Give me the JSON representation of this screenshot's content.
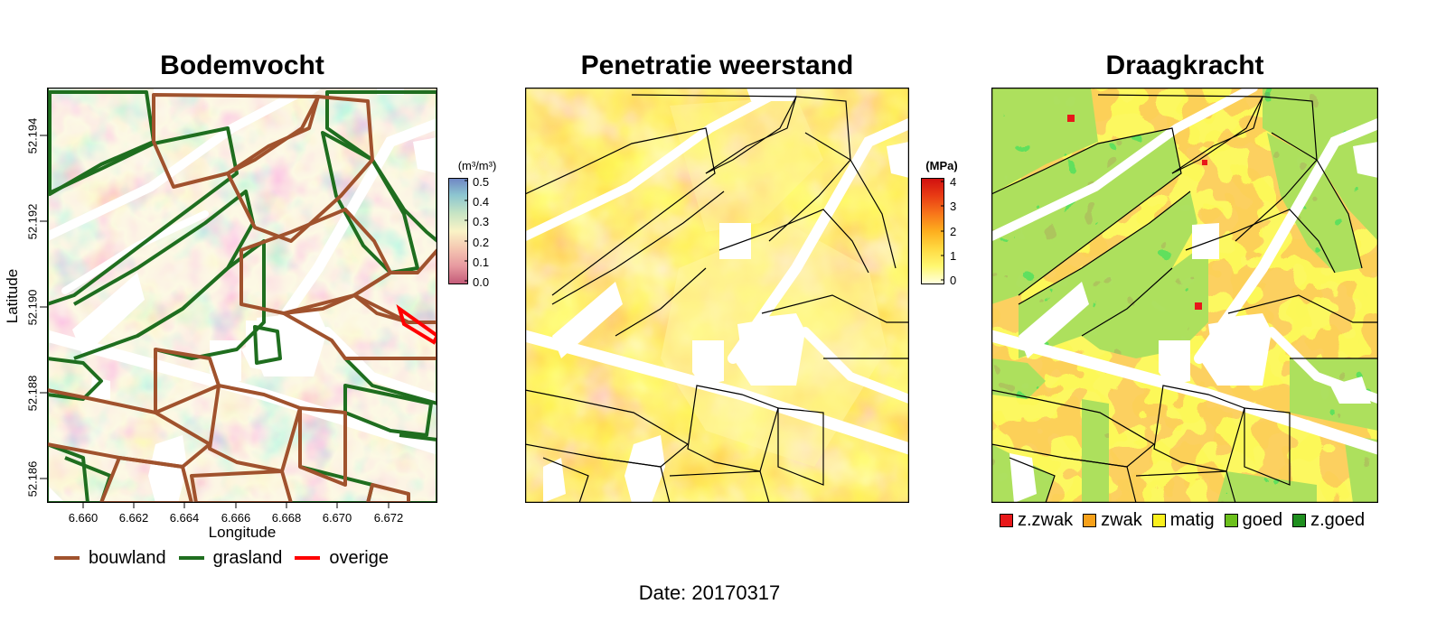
{
  "colors": {
    "bouwland": "#A0522D",
    "grasland": "#1F6E1F",
    "overige": "#FF0000",
    "parcel_edge": "#000000"
  },
  "footer": {
    "date_label": "Date: 20170317"
  },
  "chart_data": [
    {
      "type": "heatmap",
      "title": "Bodemvocht",
      "xlabel": "Longitude",
      "ylabel": "Latitude",
      "xlim": [
        6.6585,
        6.6737
      ],
      "ylim": [
        52.1852,
        52.1953
      ],
      "x_ticks": [
        "6.660",
        "6.662",
        "6.664",
        "6.666",
        "6.668",
        "6.670",
        "6.672"
      ],
      "y_ticks": [
        "52.186",
        "52.188",
        "52.190",
        "52.192",
        "52.194"
      ],
      "colorbar": {
        "label": "(m³/m³)",
        "range": [
          0,
          0.5
        ],
        "ticks": [
          "0.0",
          "0.1",
          "0.2",
          "0.3",
          "0.4",
          "0.5"
        ],
        "palette": [
          "#C35A78",
          "#E79AA0",
          "#F5C8B2",
          "#FAF3C6",
          "#C6E4C4",
          "#8DC6D0",
          "#6F86C4"
        ]
      },
      "legend": {
        "position": "bottom",
        "items": [
          {
            "label": "bouwland",
            "color": "#A0522D"
          },
          {
            "label": "grasland",
            "color": "#1F6E1F"
          },
          {
            "label": "overige",
            "color": "#FF0000"
          }
        ]
      }
    },
    {
      "type": "heatmap",
      "title": "Penetratie weerstand",
      "colorbar": {
        "label": "(MPa)",
        "range": [
          0,
          4
        ],
        "ticks": [
          "0",
          "1",
          "2",
          "3",
          "4"
        ],
        "palette": [
          "#FFFFE0",
          "#FFF770",
          "#FFD840",
          "#FDAE1E",
          "#F7741A",
          "#E83A14",
          "#D01010"
        ]
      }
    },
    {
      "type": "heatmap",
      "title": "Draagkracht",
      "legend": {
        "position": "bottom",
        "items": [
          {
            "label": "z.zwak",
            "color": "#E8181A"
          },
          {
            "label": "zwak",
            "color": "#F7A11A"
          },
          {
            "label": "matig",
            "color": "#FAF01E"
          },
          {
            "label": "goed",
            "color": "#6CC01C"
          },
          {
            "label": "z.goed",
            "color": "#1F8F1F"
          }
        ]
      }
    }
  ]
}
